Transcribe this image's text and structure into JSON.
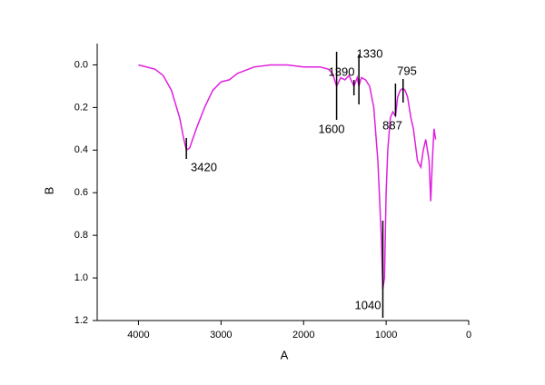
{
  "chart_data": {
    "type": "line",
    "x_label": "A",
    "y_label": "B",
    "xlim": [
      4500,
      0
    ],
    "ylim": [
      1.2,
      -0.1
    ],
    "xticks": [
      4000,
      3000,
      2000,
      1000,
      0
    ],
    "yticks": [
      {
        "value": 0,
        "label": "0.0"
      },
      0.2,
      0.4,
      0.6,
      0.8,
      {
        "value": 1,
        "label": "1.0"
      },
      1.2
    ],
    "series": [
      {
        "color": "#e020e0",
        "x": [
          4000,
          3800,
          3700,
          3600,
          3500,
          3450,
          3420,
          3380,
          3300,
          3200,
          3100,
          3000,
          2900,
          2800,
          2600,
          2400,
          2200,
          2000,
          1800,
          1700,
          1650,
          1600,
          1550,
          1500,
          1450,
          1390,
          1350,
          1330,
          1300,
          1250,
          1200,
          1150,
          1100,
          1060,
          1040,
          1020,
          1000,
          980,
          950,
          920,
          887,
          860,
          830,
          795,
          770,
          740,
          700,
          670,
          620,
          580,
          550,
          520,
          480,
          460,
          440,
          420,
          400
        ],
        "values": [
          0.0,
          0.02,
          0.05,
          0.12,
          0.25,
          0.35,
          0.4,
          0.39,
          0.3,
          0.2,
          0.12,
          0.08,
          0.07,
          0.04,
          0.01,
          0.0,
          0.0,
          0.01,
          0.01,
          0.02,
          0.04,
          0.1,
          0.06,
          0.07,
          0.05,
          0.1,
          0.06,
          0.1,
          0.06,
          0.07,
          0.1,
          0.2,
          0.45,
          0.8,
          1.05,
          1.0,
          0.6,
          0.4,
          0.25,
          0.22,
          0.24,
          0.15,
          0.12,
          0.11,
          0.12,
          0.15,
          0.25,
          0.3,
          0.45,
          0.48,
          0.4,
          0.35,
          0.45,
          0.64,
          0.45,
          0.3,
          0.35
        ]
      }
    ],
    "annotations": [
      3420,
      1600,
      1390,
      1330,
      887,
      795,
      1040
    ]
  }
}
